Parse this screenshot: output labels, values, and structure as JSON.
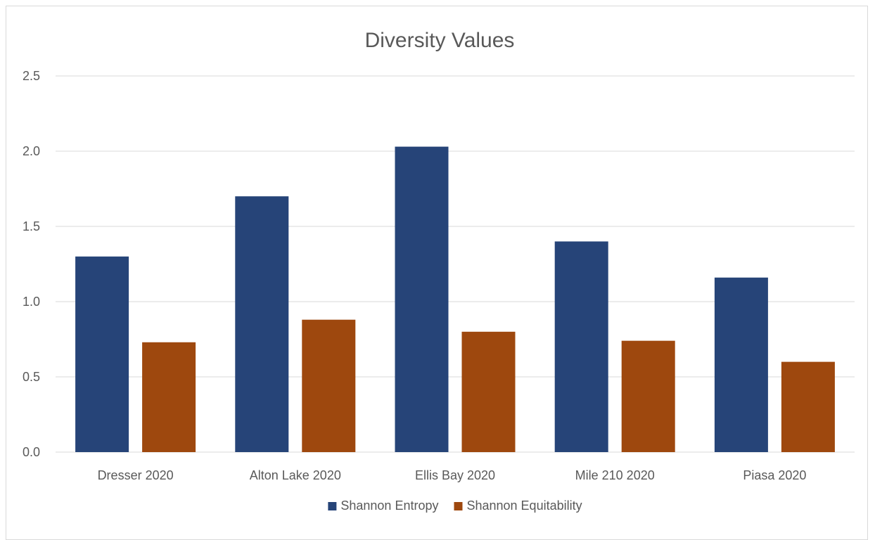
{
  "chart_data": {
    "type": "bar",
    "title": "Diversity Values",
    "xlabel": "",
    "ylabel": "",
    "categories": [
      "Dresser 2020",
      "Alton Lake 2020",
      "Ellis Bay 2020",
      "Mile 210 2020",
      "Piasa 2020"
    ],
    "series": [
      {
        "name": "Shannon Entropy",
        "color": "#264478",
        "values": [
          1.3,
          1.7,
          2.03,
          1.4,
          1.16
        ]
      },
      {
        "name": "Shannon Equitability",
        "color": "#9E480E",
        "values": [
          0.73,
          0.88,
          0.8,
          0.74,
          0.6
        ]
      }
    ],
    "ylim": [
      0,
      2.5
    ],
    "yticks": [
      "0.0",
      "0.5",
      "1.0",
      "1.5",
      "2.0",
      "2.5"
    ],
    "grid": true,
    "legend_position": "bottom"
  }
}
